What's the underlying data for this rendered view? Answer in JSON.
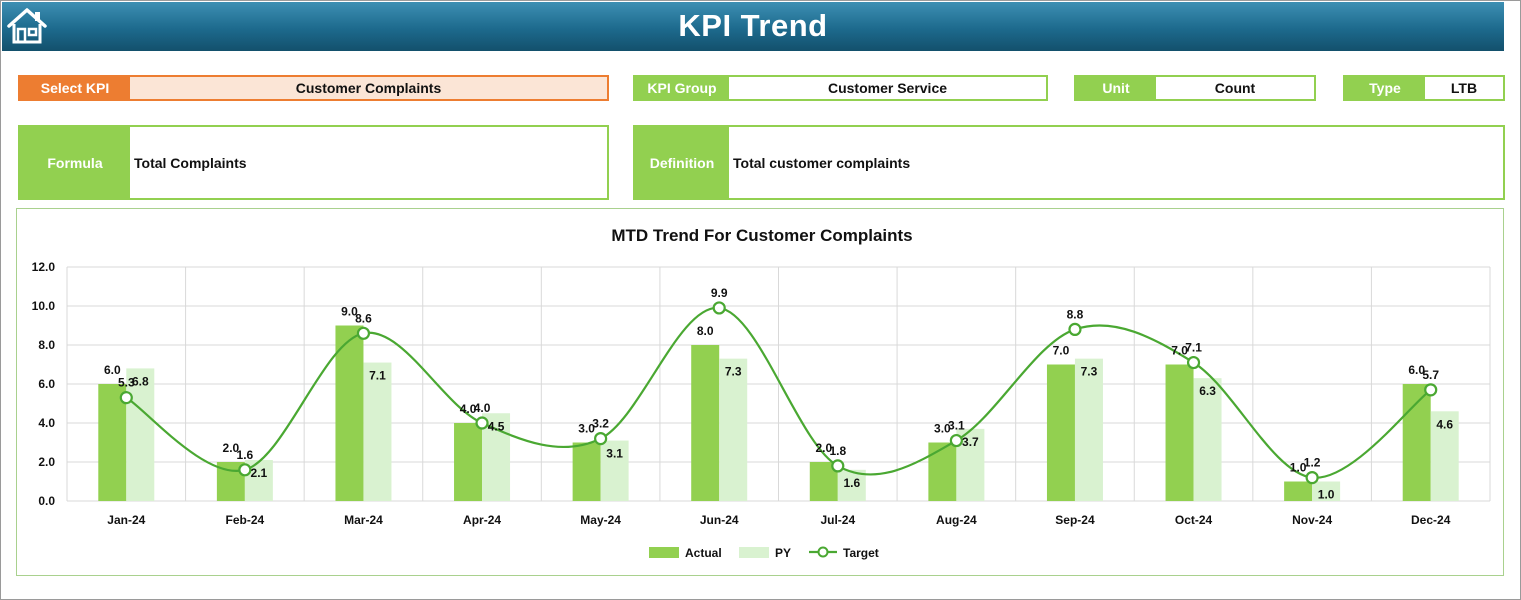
{
  "header": {
    "title": "KPI Trend",
    "home_icon": "home-icon"
  },
  "select_kpi": {
    "label": "Select KPI",
    "value": "Customer Complaints"
  },
  "kpi_group": {
    "label": "KPI Group",
    "value": "Customer Service"
  },
  "unit": {
    "label": "Unit",
    "value": "Count"
  },
  "type": {
    "label": "Type",
    "value": "LTB"
  },
  "formula": {
    "label": "Formula",
    "value": "Total Complaints"
  },
  "definition": {
    "label": "Definition",
    "value": "Total customer complaints"
  },
  "colors": {
    "header": "#1d6a8d",
    "select_label": "#ed7d31",
    "select_value_bg": "#fbe5d6",
    "accent_green": "#92d050",
    "actual": "#92d050",
    "py": "#d9f2d0",
    "target": "#4aa832"
  },
  "chart_data": {
    "type": "bar",
    "title": "MTD Trend For Customer Complaints",
    "categories": [
      "Jan-24",
      "Feb-24",
      "Mar-24",
      "Apr-24",
      "May-24",
      "Jun-24",
      "Jul-24",
      "Aug-24",
      "Sep-24",
      "Oct-24",
      "Nov-24",
      "Dec-24"
    ],
    "series": [
      {
        "name": "Actual",
        "kind": "bar",
        "values": [
          6.0,
          2.0,
          9.0,
          4.0,
          3.0,
          8.0,
          2.0,
          3.0,
          7.0,
          7.0,
          1.0,
          6.0
        ]
      },
      {
        "name": "PY",
        "kind": "bar",
        "values": [
          6.8,
          2.1,
          7.1,
          4.5,
          3.1,
          7.3,
          1.6,
          3.7,
          7.3,
          6.3,
          1.0,
          4.6
        ]
      },
      {
        "name": "Target",
        "kind": "smooth-line-markers",
        "values": [
          5.3,
          1.6,
          8.6,
          4.0,
          3.2,
          9.9,
          1.8,
          3.1,
          8.8,
          7.1,
          1.2,
          5.7
        ]
      }
    ],
    "ylim": [
      0,
      12
    ],
    "yticks": [
      "0.0",
      "2.0",
      "4.0",
      "6.0",
      "8.0",
      "10.0",
      "12.0"
    ],
    "grid": true,
    "legend": "bottom",
    "xlabel": "",
    "ylabel": ""
  }
}
